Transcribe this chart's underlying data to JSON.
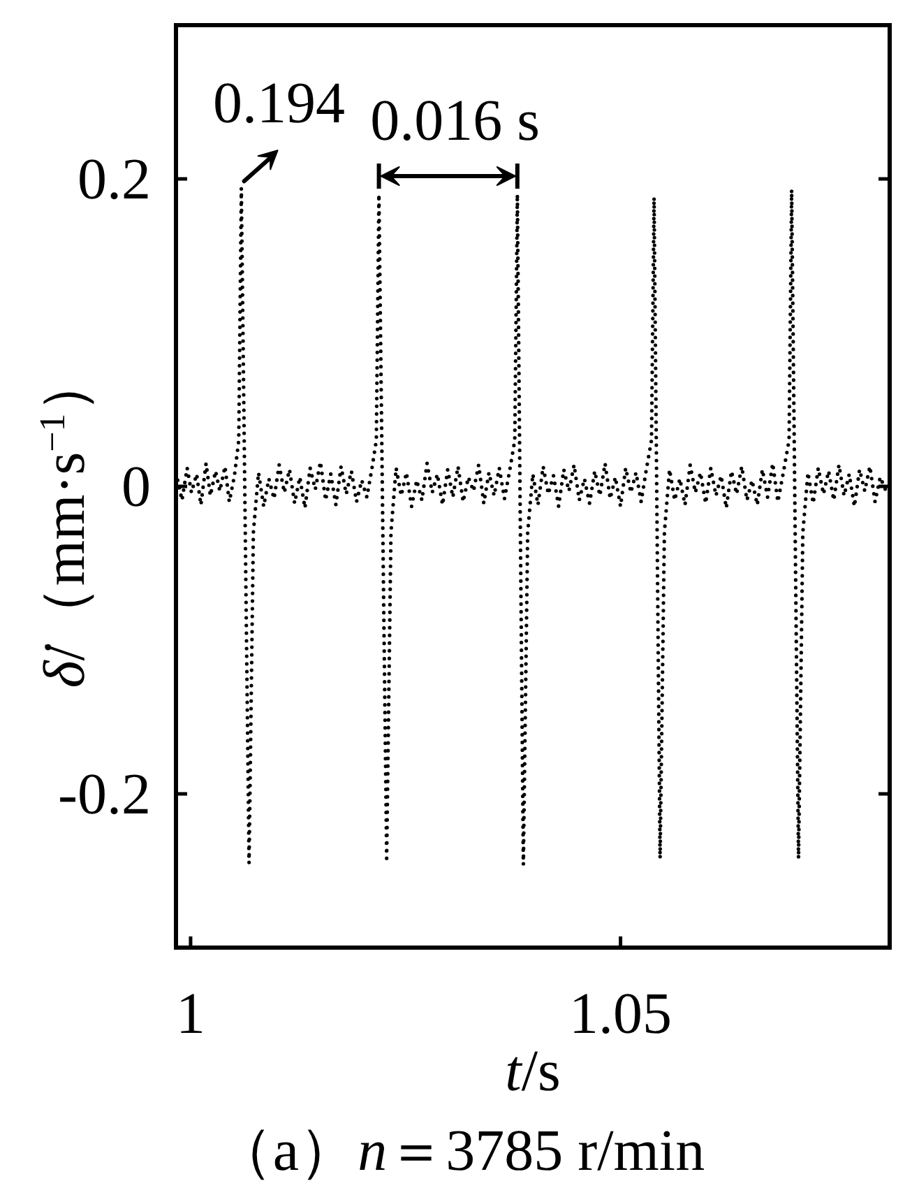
{
  "chart_data": {
    "type": "line",
    "xlabel": "t/s",
    "ylabel": "δ̇/（mm·s$^{−1}$）",
    "xlim": [
      0.9983,
      1.0813
    ],
    "xticks": [
      1,
      1.05
    ],
    "ylim": [
      -0.3,
      0.3
    ],
    "yticks": [
      -0.2,
      0,
      0.2
    ],
    "line_style": "dotted",
    "color": "#000000",
    "x": [
      0.9985,
      0.999,
      0.9996,
      1.0001,
      1.0007,
      1.0012,
      1.0018,
      1.0023,
      1.0029,
      1.0034,
      1.004,
      1.0045,
      1.0051,
      1.0056,
      1.0059,
      1.0068,
      1.0073,
      1.0079,
      1.0085,
      1.0091,
      1.0097,
      1.0103,
      1.0109,
      1.0115,
      1.0121,
      1.0127,
      1.0133,
      1.0139,
      1.0145,
      1.0151,
      1.0157,
      1.0163,
      1.0169,
      1.0175,
      1.0181,
      1.0187,
      1.0193,
      1.0199,
      1.0205,
      1.0211,
      1.0216,
      1.0219,
      1.0228,
      1.0233,
      1.0239,
      1.0245,
      1.0251,
      1.0257,
      1.0263,
      1.0269,
      1.0275,
      1.0281,
      1.0287,
      1.0293,
      1.0299,
      1.0305,
      1.0311,
      1.0317,
      1.0323,
      1.0329,
      1.0335,
      1.0341,
      1.0347,
      1.0353,
      1.0359,
      1.0365,
      1.0371,
      1.0377,
      1.038,
      1.0387,
      1.0392,
      1.0398,
      1.0404,
      1.041,
      1.0416,
      1.0422,
      1.0428,
      1.0434,
      1.044,
      1.0446,
      1.0452,
      1.0458,
      1.0464,
      1.047,
      1.0476,
      1.0482,
      1.0488,
      1.0494,
      1.05,
      1.0506,
      1.0512,
      1.0518,
      1.0524,
      1.053,
      1.0536,
      1.0539,
      1.0546,
      1.0551,
      1.0557,
      1.0563,
      1.0569,
      1.0575,
      1.0581,
      1.0587,
      1.0593,
      1.0599,
      1.0605,
      1.0611,
      1.0617,
      1.0623,
      1.0629,
      1.0635,
      1.0641,
      1.0647,
      1.0653,
      1.0659,
      1.0665,
      1.0671,
      1.0677,
      1.0683,
      1.0689,
      1.0696,
      1.0699,
      1.0707,
      1.0712,
      1.0718,
      1.0724,
      1.073,
      1.0736,
      1.0742,
      1.0748,
      1.0754,
      1.076,
      1.0766,
      1.0772,
      1.0778,
      1.0784,
      1.079,
      1.0796,
      1.0802,
      1.0808
    ],
    "values": [
      0.004,
      -0.009,
      0.012,
      -0.004,
      0.008,
      -0.012,
      0.015,
      -0.006,
      0.01,
      -0.003,
      0.013,
      -0.01,
      0.007,
      0.03,
      0.194,
      -0.245,
      -0.03,
      0.009,
      -0.013,
      0.005,
      -0.008,
      0.014,
      -0.004,
      0.011,
      -0.011,
      0.006,
      -0.014,
      0.012,
      -0.002,
      0.016,
      -0.009,
      0.008,
      -0.012,
      0.013,
      -0.005,
      0.01,
      -0.01,
      0.004,
      -0.007,
      0.012,
      0.03,
      0.19,
      -0.242,
      -0.03,
      0.012,
      -0.006,
      0.009,
      -0.013,
      0.004,
      -0.009,
      0.015,
      -0.004,
      0.008,
      -0.012,
      0.011,
      -0.007,
      0.013,
      -0.01,
      0.006,
      -0.003,
      0.014,
      -0.011,
      0.009,
      -0.006,
      0.012,
      -0.008,
      0.01,
      0.03,
      0.19,
      -0.246,
      -0.03,
      0.008,
      -0.012,
      0.013,
      -0.005,
      0.007,
      -0.013,
      0.011,
      -0.003,
      0.014,
      -0.009,
      0.005,
      -0.011,
      0.01,
      -0.006,
      0.015,
      -0.008,
      0.006,
      -0.013,
      0.012,
      -0.004,
      0.009,
      -0.01,
      0.011,
      0.03,
      0.188,
      -0.242,
      -0.03,
      0.011,
      -0.009,
      0.005,
      -0.012,
      0.014,
      -0.004,
      0.009,
      -0.011,
      0.012,
      -0.006,
      0.007,
      -0.014,
      0.01,
      -0.005,
      0.013,
      -0.009,
      0.004,
      -0.012,
      0.011,
      -0.007,
      0.015,
      -0.01,
      0.008,
      0.03,
      0.193,
      -0.242,
      -0.03,
      0.009,
      -0.011,
      0.012,
      -0.005,
      0.01,
      -0.009,
      0.014,
      -0.006,
      0.008,
      -0.013,
      0.011,
      -0.003,
      0.013,
      -0.01,
      0.006,
      -0.002
    ],
    "value_labels": [
      null,
      null,
      null,
      null,
      null,
      null,
      null,
      null,
      null,
      null,
      null,
      null,
      null,
      null,
      "0.194",
      null,
      null,
      null,
      null,
      null,
      null,
      null,
      null,
      null,
      null,
      null,
      null,
      null,
      null,
      null,
      null,
      null,
      null,
      null,
      null,
      null,
      null,
      null,
      null,
      null,
      null,
      null,
      null,
      null,
      null,
      null,
      null,
      null,
      null,
      null,
      null,
      null,
      null,
      null,
      null,
      null,
      null,
      null,
      null,
      null,
      null,
      null,
      null,
      null,
      null,
      null,
      null,
      null,
      null,
      null,
      null,
      null,
      null,
      null,
      null,
      null,
      null,
      null,
      null,
      null,
      null,
      null,
      null,
      null,
      null,
      null,
      null,
      null,
      null,
      null,
      null,
      null,
      null,
      null,
      null,
      null,
      null,
      null,
      null,
      null,
      null,
      null,
      null,
      null,
      null,
      null,
      null,
      null,
      null,
      null,
      null,
      null,
      null,
      null,
      null,
      null,
      null,
      null,
      null,
      null,
      null,
      null,
      null,
      null,
      null,
      null,
      null,
      null,
      null,
      null,
      null,
      null,
      null,
      null,
      null,
      null,
      null,
      null,
      null,
      null,
      null
    ],
    "annotations": [
      {
        "text": "0.016 s",
        "x": 1.0219,
        "y": 0.19
      },
      "（a）n＝3785 r/min"
    ]
  }
}
